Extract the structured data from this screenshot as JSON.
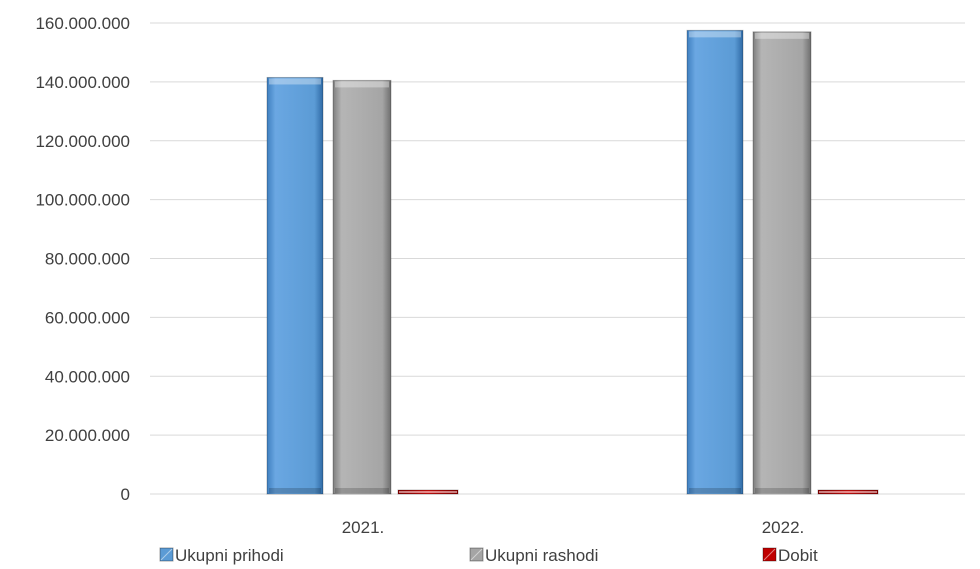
{
  "chart_data": {
    "type": "bar",
    "title": "",
    "xlabel": "",
    "ylabel": "",
    "categories": [
      "2021.",
      "2022."
    ],
    "series": [
      {
        "name": "Ukupni prihodi",
        "values": [
          141500000,
          157500000
        ],
        "color": "#5b9bd5"
      },
      {
        "name": "Ukupni rashodi",
        "values": [
          140500000,
          157000000
        ],
        "color": "#a5a5a5"
      },
      {
        "name": "Dobit",
        "values": [
          1200000,
          900000
        ],
        "color": "#c00000"
      }
    ],
    "ylim": [
      0,
      160000000
    ],
    "yticks": [
      0,
      20000000,
      40000000,
      60000000,
      80000000,
      100000000,
      120000000,
      140000000,
      160000000
    ],
    "ytick_labels": [
      "0",
      "20.000.000",
      "40.000.000",
      "60.000.000",
      "80.000.000",
      "100.000.000",
      "120.000.000",
      "140.000.000",
      "160.000.000"
    ],
    "grid": true,
    "legend_position": "bottom"
  }
}
